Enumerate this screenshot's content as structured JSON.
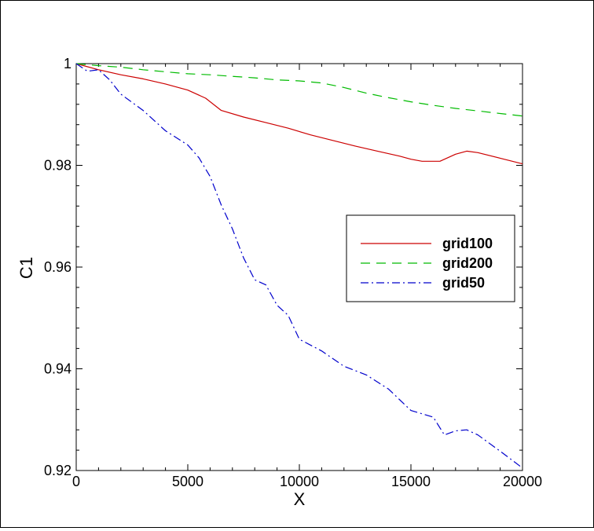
{
  "chart_data": {
    "type": "line",
    "title": "",
    "xlabel": "X",
    "ylabel": "C1",
    "xlim": [
      0,
      20000
    ],
    "ylim": [
      0.92,
      1.0
    ],
    "xticks": [
      0,
      5000,
      10000,
      15000,
      20000
    ],
    "xtick_labels": [
      "0",
      "5000",
      "10000",
      "15000",
      "20000"
    ],
    "yticks": [
      0.92,
      0.94,
      0.96,
      0.98,
      1.0
    ],
    "ytick_labels": [
      "0.92",
      "0.94",
      "0.96",
      "0.98",
      "1"
    ],
    "grid": false,
    "legend_position": "right-middle",
    "series": [
      {
        "name": "grid100",
        "color": "#cc0000",
        "dash": "solid",
        "x": [
          0,
          1000,
          2000,
          3000,
          4000,
          5000,
          5800,
          6500,
          7500,
          8500,
          9500,
          10500,
          11500,
          12500,
          13500,
          14500,
          15000,
          15500,
          16300,
          17000,
          17500,
          18000,
          19000,
          20000
        ],
        "y": [
          1.0,
          0.9988,
          0.9978,
          0.997,
          0.996,
          0.9948,
          0.9932,
          0.9908,
          0.9895,
          0.9884,
          0.9873,
          0.986,
          0.9849,
          0.9838,
          0.9828,
          0.9818,
          0.9812,
          0.9808,
          0.9808,
          0.9822,
          0.9828,
          0.9825,
          0.9814,
          0.9803
        ]
      },
      {
        "name": "grid200",
        "color": "#00bb00",
        "dash": "dashed",
        "x": [
          0,
          1000,
          2000,
          3000,
          4000,
          5000,
          6000,
          7000,
          8000,
          9000,
          10000,
          11000,
          12000,
          13000,
          14000,
          15000,
          16000,
          17000,
          18000,
          19000,
          20000
        ],
        "y": [
          1.0,
          0.9996,
          0.9993,
          0.9988,
          0.9984,
          0.998,
          0.9978,
          0.9975,
          0.9972,
          0.9968,
          0.9966,
          0.9962,
          0.9953,
          0.9942,
          0.9933,
          0.9925,
          0.9918,
          0.9912,
          0.9907,
          0.9902,
          0.9897
        ]
      },
      {
        "name": "grid50",
        "color": "#0000cc",
        "dash": "dashdot",
        "x": [
          0,
          500,
          1000,
          1500,
          2000,
          3000,
          4000,
          5000,
          5500,
          6000,
          6500,
          7000,
          7500,
          8000,
          8500,
          9000,
          9500,
          10000,
          11000,
          12000,
          13000,
          14000,
          15000,
          16000,
          16500,
          17000,
          17500,
          18000,
          19000,
          20000
        ],
        "y": [
          1.0,
          0.9985,
          0.9988,
          0.9968,
          0.994,
          0.9908,
          0.9868,
          0.984,
          0.9815,
          0.9778,
          0.9722,
          0.9675,
          0.9618,
          0.9575,
          0.9565,
          0.9525,
          0.9505,
          0.9458,
          0.9435,
          0.9405,
          0.9388,
          0.936,
          0.9318,
          0.9305,
          0.927,
          0.9278,
          0.928,
          0.927,
          0.9238,
          0.9205
        ]
      }
    ]
  }
}
